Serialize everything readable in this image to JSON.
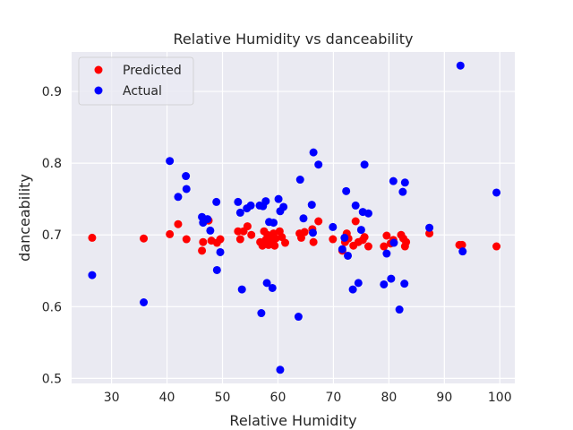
{
  "chart_data": {
    "type": "scatter",
    "title": "Relative Humidity vs danceability",
    "xlabel": "Relative Humidity",
    "ylabel": "danceability",
    "xlim": [
      22.8,
      102.7
    ],
    "ylim": [
      0.493,
      0.955
    ],
    "xticks": [
      30,
      40,
      50,
      60,
      70,
      80,
      90,
      100
    ],
    "yticks": [
      0.5,
      0.6,
      0.7,
      0.8,
      0.9
    ],
    "grid": true,
    "legend_position": "top-left",
    "series": [
      {
        "name": "Predicted",
        "color": "#ff0000",
        "points": [
          [
            26.5,
            0.696
          ],
          [
            35.8,
            0.695
          ],
          [
            40.5,
            0.701
          ],
          [
            42.0,
            0.715
          ],
          [
            43.5,
            0.694
          ],
          [
            46.3,
            0.678
          ],
          [
            46.5,
            0.69
          ],
          [
            47.5,
            0.72
          ],
          [
            48.0,
            0.692
          ],
          [
            49.0,
            0.689
          ],
          [
            49.6,
            0.694
          ],
          [
            52.8,
            0.705
          ],
          [
            53.2,
            0.694
          ],
          [
            53.8,
            0.705
          ],
          [
            54.5,
            0.712
          ],
          [
            55.2,
            0.7
          ],
          [
            56.8,
            0.69
          ],
          [
            57.2,
            0.685
          ],
          [
            57.5,
            0.705
          ],
          [
            57.8,
            0.693
          ],
          [
            58.1,
            0.7
          ],
          [
            58.3,
            0.686
          ],
          [
            58.6,
            0.69
          ],
          [
            59.0,
            0.695
          ],
          [
            59.2,
            0.702
          ],
          [
            59.4,
            0.685
          ],
          [
            59.6,
            0.695
          ],
          [
            60.3,
            0.705
          ],
          [
            60.7,
            0.697
          ],
          [
            61.3,
            0.689
          ],
          [
            63.9,
            0.702
          ],
          [
            64.2,
            0.696
          ],
          [
            64.8,
            0.704
          ],
          [
            66.2,
            0.708
          ],
          [
            66.4,
            0.69
          ],
          [
            67.3,
            0.719
          ],
          [
            69.9,
            0.694
          ],
          [
            71.6,
            0.678
          ],
          [
            72.1,
            0.69
          ],
          [
            72.4,
            0.702
          ],
          [
            72.7,
            0.695
          ],
          [
            73.6,
            0.685
          ],
          [
            74.0,
            0.719
          ],
          [
            74.5,
            0.69
          ],
          [
            75.3,
            0.693
          ],
          [
            75.6,
            0.697
          ],
          [
            76.3,
            0.684
          ],
          [
            79.1,
            0.684
          ],
          [
            79.6,
            0.699
          ],
          [
            80.3,
            0.688
          ],
          [
            80.8,
            0.693
          ],
          [
            82.2,
            0.7
          ],
          [
            82.6,
            0.695
          ],
          [
            82.9,
            0.684
          ],
          [
            83.1,
            0.69
          ],
          [
            87.3,
            0.702
          ],
          [
            92.7,
            0.686
          ],
          [
            93.2,
            0.686
          ],
          [
            99.4,
            0.684
          ]
        ]
      },
      {
        "name": "Actual",
        "color": "#0000ff",
        "points": [
          [
            26.5,
            0.644
          ],
          [
            35.8,
            0.606
          ],
          [
            40.5,
            0.803
          ],
          [
            42.0,
            0.753
          ],
          [
            43.4,
            0.782
          ],
          [
            43.5,
            0.764
          ],
          [
            46.3,
            0.725
          ],
          [
            46.5,
            0.717
          ],
          [
            47.3,
            0.722
          ],
          [
            47.8,
            0.706
          ],
          [
            48.9,
            0.746
          ],
          [
            49.0,
            0.651
          ],
          [
            49.6,
            0.676
          ],
          [
            52.8,
            0.746
          ],
          [
            53.2,
            0.731
          ],
          [
            53.5,
            0.624
          ],
          [
            54.4,
            0.737
          ],
          [
            55.1,
            0.741
          ],
          [
            56.7,
            0.741
          ],
          [
            57.0,
            0.591
          ],
          [
            57.3,
            0.74
          ],
          [
            57.8,
            0.747
          ],
          [
            58.0,
            0.633
          ],
          [
            58.4,
            0.718
          ],
          [
            59.0,
            0.626
          ],
          [
            59.2,
            0.717
          ],
          [
            60.1,
            0.75
          ],
          [
            60.4,
            0.733
          ],
          [
            60.4,
            0.512
          ],
          [
            61.0,
            0.739
          ],
          [
            63.7,
            0.586
          ],
          [
            64.0,
            0.777
          ],
          [
            64.6,
            0.723
          ],
          [
            66.1,
            0.742
          ],
          [
            66.3,
            0.703
          ],
          [
            66.4,
            0.815
          ],
          [
            67.3,
            0.798
          ],
          [
            69.9,
            0.711
          ],
          [
            71.6,
            0.68
          ],
          [
            72.0,
            0.696
          ],
          [
            72.3,
            0.761
          ],
          [
            72.6,
            0.671
          ],
          [
            73.5,
            0.624
          ],
          [
            74.0,
            0.741
          ],
          [
            74.5,
            0.633
          ],
          [
            75.0,
            0.707
          ],
          [
            75.3,
            0.732
          ],
          [
            75.6,
            0.798
          ],
          [
            76.3,
            0.73
          ],
          [
            79.1,
            0.631
          ],
          [
            79.6,
            0.674
          ],
          [
            80.4,
            0.639
          ],
          [
            80.8,
            0.775
          ],
          [
            80.9,
            0.689
          ],
          [
            81.9,
            0.596
          ],
          [
            82.5,
            0.76
          ],
          [
            82.8,
            0.632
          ],
          [
            82.9,
            0.773
          ],
          [
            87.3,
            0.71
          ],
          [
            92.9,
            0.936
          ],
          [
            93.3,
            0.677
          ],
          [
            99.4,
            0.759
          ]
        ]
      }
    ]
  }
}
